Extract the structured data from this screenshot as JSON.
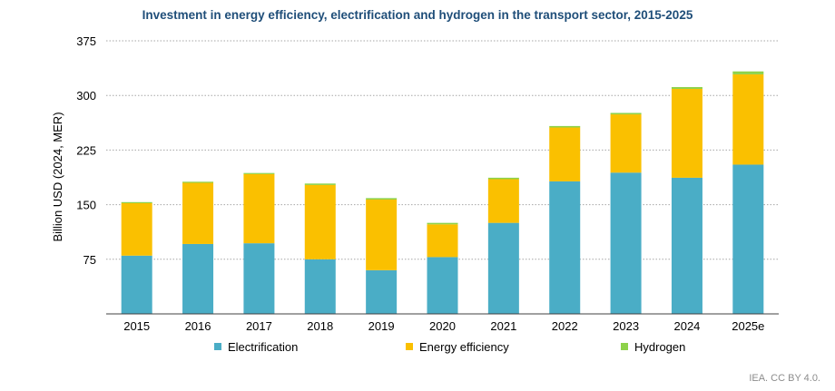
{
  "chart_data": {
    "type": "bar",
    "stacked": true,
    "title": "Investment in energy efficiency, electrification and hydrogen in the transport sector, 2015-2025",
    "ylabel": "Billion USD (2024, MER)",
    "xlabel": "",
    "ylim": [
      0,
      375
    ],
    "yticks": [
      75,
      150,
      225,
      300,
      375
    ],
    "grid": true,
    "legend_position": "bottom",
    "categories": [
      "2015",
      "2016",
      "2017",
      "2018",
      "2019",
      "2020",
      "2021",
      "2022",
      "2023",
      "2024",
      "2025e"
    ],
    "series": [
      {
        "name": "Electrification",
        "values": [
          80,
          96,
          97,
          75,
          60,
          78,
          125,
          182,
          194,
          187,
          205
        ]
      },
      {
        "name": "Energy efficiency",
        "values": [
          72,
          84,
          95,
          102,
          97,
          45,
          60,
          74,
          80,
          122,
          124
        ]
      },
      {
        "name": "Hydrogen",
        "values": [
          1.5,
          1.5,
          1.5,
          2,
          2,
          2,
          2,
          2,
          2,
          2.5,
          4
        ]
      }
    ],
    "colors": {
      "Electrification": "#4aadc6",
      "Energy efficiency": "#fac000",
      "Hydrogen": "#8ed24a"
    }
  },
  "style": {
    "title_color": "#1f4e79",
    "grid_color": "#a6a6a6",
    "axis_color": "#404040"
  },
  "footer": "IEA. CC BY 4.0."
}
